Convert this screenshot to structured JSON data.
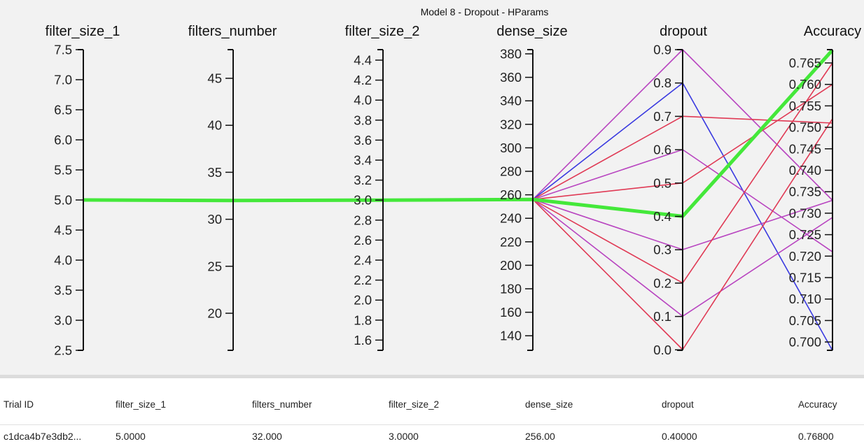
{
  "title": "Model 8 - Dropout - HParams",
  "axes": [
    {
      "name": "filter_size_1",
      "ticks": [
        "7.5",
        "7.0",
        "6.5",
        "6.0",
        "5.5",
        "5.0",
        "4.5",
        "4.0",
        "3.5",
        "3.0",
        "2.5"
      ]
    },
    {
      "name": "filters_number",
      "ticks": [
        "45",
        "40",
        "35",
        "30",
        "25",
        "20"
      ]
    },
    {
      "name": "filter_size_2",
      "ticks": [
        "4.4",
        "4.2",
        "4.0",
        "3.8",
        "3.6",
        "3.4",
        "3.2",
        "3.0",
        "2.8",
        "2.6",
        "2.4",
        "2.2",
        "2.0",
        "1.8",
        "1.6"
      ]
    },
    {
      "name": "dense_size",
      "ticks": [
        "380",
        "360",
        "340",
        "320",
        "300",
        "280",
        "260",
        "240",
        "220",
        "200",
        "180",
        "160",
        "140"
      ]
    },
    {
      "name": "dropout",
      "ticks": [
        "0.9",
        "0.8",
        "0.7",
        "0.6",
        "0.5",
        "0.4",
        "0.3",
        "0.2",
        "0.1",
        "0.0"
      ]
    },
    {
      "name": "Accuracy",
      "ticks": [
        "0.765",
        "0.760",
        "0.755",
        "0.750",
        "0.745",
        "0.740",
        "0.735",
        "0.730",
        "0.725",
        "0.720",
        "0.715",
        "0.710",
        "0.705",
        "0.700"
      ]
    }
  ],
  "colors": {
    "highlight": "#44e83a",
    "high": "#e03a55",
    "mid": "#b844c0",
    "low": "#3a3ae0"
  },
  "chart_data": {
    "type": "parallel-coordinates",
    "title": "Model 8 - Dropout - HParams",
    "dimensions": [
      "filter_size_1",
      "filters_number",
      "filter_size_2",
      "dense_size",
      "dropout",
      "Accuracy"
    ],
    "ranges": {
      "filter_size_1": [
        2.5,
        7.5
      ],
      "filters_number": [
        16.5,
        48.0
      ],
      "filter_size_2": [
        1.5,
        4.5
      ],
      "dense_size": [
        129,
        385
      ],
      "dropout": [
        0.0,
        0.9
      ],
      "Accuracy": [
        0.698,
        0.768
      ]
    },
    "trials": [
      {
        "filter_size_1": 5,
        "filters_number": 32,
        "filter_size_2": 3,
        "dense_size": 256,
        "dropout": 0.9,
        "Accuracy": 0.733,
        "color": "mid"
      },
      {
        "filter_size_1": 5,
        "filters_number": 32,
        "filter_size_2": 3,
        "dense_size": 256,
        "dropout": 0.8,
        "Accuracy": 0.698,
        "color": "low"
      },
      {
        "filter_size_1": 5,
        "filters_number": 32,
        "filter_size_2": 3,
        "dense_size": 256,
        "dropout": 0.7,
        "Accuracy": 0.751,
        "color": "high"
      },
      {
        "filter_size_1": 5,
        "filters_number": 32,
        "filter_size_2": 3,
        "dense_size": 256,
        "dropout": 0.6,
        "Accuracy": 0.721,
        "color": "mid"
      },
      {
        "filter_size_1": 5,
        "filters_number": 32,
        "filter_size_2": 3,
        "dense_size": 256,
        "dropout": 0.5,
        "Accuracy": 0.76,
        "color": "high"
      },
      {
        "filter_size_1": 5,
        "filters_number": 32,
        "filter_size_2": 3,
        "dense_size": 256,
        "dropout": 0.4,
        "Accuracy": 0.768,
        "color": "highlight"
      },
      {
        "filter_size_1": 5,
        "filters_number": 32,
        "filter_size_2": 3,
        "dense_size": 256,
        "dropout": 0.3,
        "Accuracy": 0.733,
        "color": "mid"
      },
      {
        "filter_size_1": 5,
        "filters_number": 32,
        "filter_size_2": 3,
        "dense_size": 256,
        "dropout": 0.2,
        "Accuracy": 0.765,
        "color": "high"
      },
      {
        "filter_size_1": 5,
        "filters_number": 32,
        "filter_size_2": 3,
        "dense_size": 256,
        "dropout": 0.1,
        "Accuracy": 0.729,
        "color": "mid"
      },
      {
        "filter_size_1": 5,
        "filters_number": 32,
        "filter_size_2": 3,
        "dense_size": 256,
        "dropout": 0.0,
        "Accuracy": 0.752,
        "color": "high"
      }
    ]
  },
  "table": {
    "headers": [
      "Trial ID",
      "filter_size_1",
      "filters_number",
      "filter_size_2",
      "dense_size",
      "dropout",
      "Accuracy"
    ],
    "row": [
      "c1dca4b7e3db2...",
      "5.0000",
      "32.000",
      "3.0000",
      "256.00",
      "0.40000",
      "0.76800"
    ]
  }
}
